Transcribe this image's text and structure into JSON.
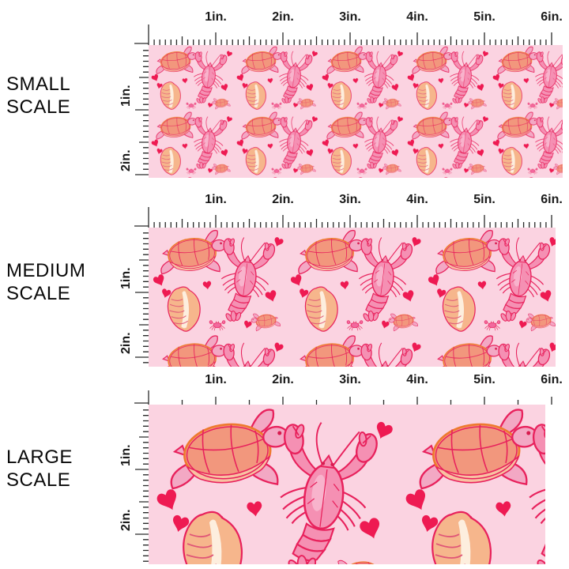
{
  "page": {
    "background": "#ffffff"
  },
  "rows": [
    {
      "id": "small",
      "label_line1": "SMALL",
      "label_line2": "SCALE"
    },
    {
      "id": "medium",
      "label_line1": "MEDIUM",
      "label_line2": "SCALE"
    },
    {
      "id": "large",
      "label_line1": "LARGE",
      "label_line2": "SCALE"
    }
  ],
  "ruler": {
    "horizontal_labels": [
      "1in.",
      "2in.",
      "3in.",
      "4in.",
      "5in.",
      "6in."
    ],
    "vertical_labels": [
      "1in.",
      "2in."
    ]
  },
  "fabric": {
    "motifs": [
      "lobster",
      "sea-turtle",
      "conch-shell",
      "heart",
      "crab"
    ],
    "colors": {
      "fabric_bg": "#fbd3e1",
      "outline_crimson": "#e8215c",
      "heart_red": "#ee1a52",
      "lobster_pink": "#f590b3",
      "highlight_pink": "#f9bcd2",
      "turtle_shell": "#f2977d",
      "turtle_skin": "#f3a8c4",
      "shell_outline_orange": "#ee7a2e",
      "shell_rim": "#f8c2a2",
      "conch_peach": "#f6b68c",
      "conch_cream": "#fdeede",
      "ridge_pink": "#e05577",
      "crab_pink": "#f2699e",
      "eye_red": "#d81b4f",
      "ruler_ink": "#2a2a2a",
      "label_ink": "#0a0a0a"
    }
  }
}
